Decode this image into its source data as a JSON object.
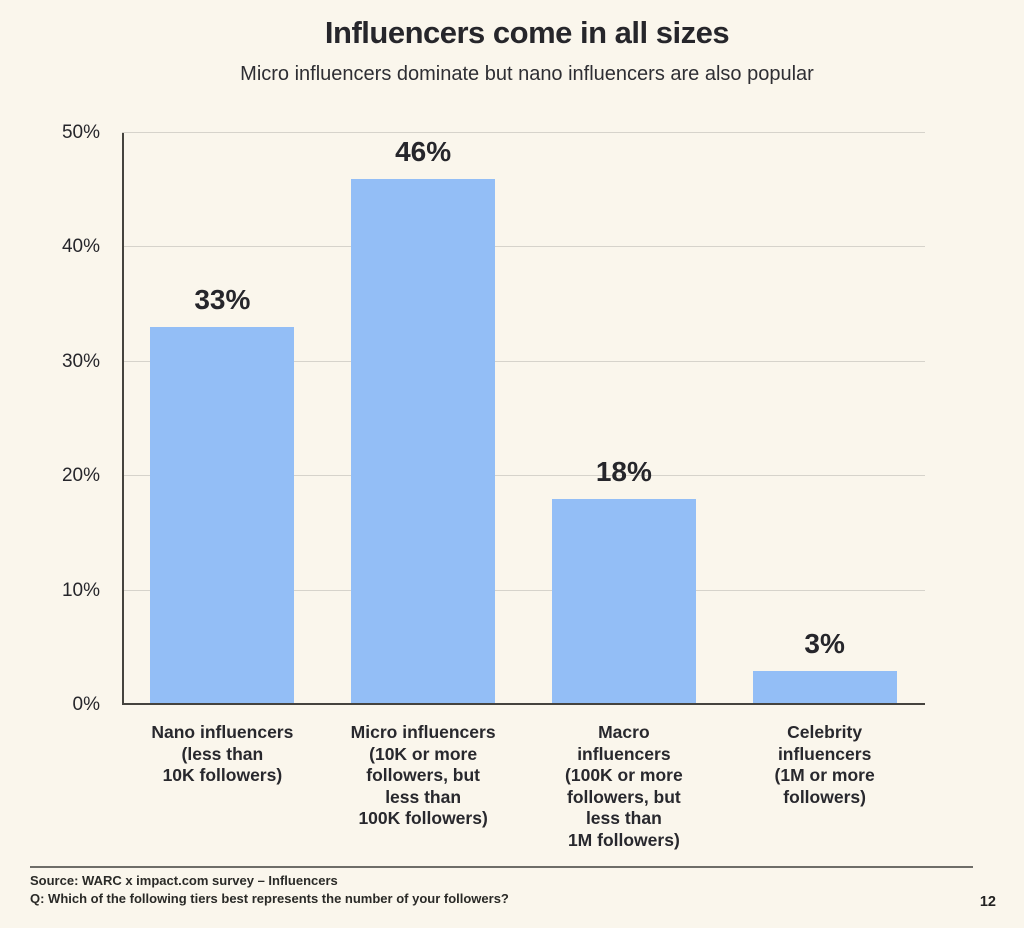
{
  "header": {
    "title": "Influencers come in all sizes",
    "subtitle": "Micro influencers dominate but nano influencers are also popular"
  },
  "chart_data": {
    "type": "bar",
    "title": "Influencers come in all sizes",
    "subtitle": "Micro influencers dominate but nano influencers are also popular",
    "categories": [
      "Nano influencers (less than 10K followers)",
      "Micro influencers (10K or more followers, but less than 100K followers)",
      "Macro influencers (100K or more followers, but less than 1M followers)",
      "Celebrity influencers (1M or more followers)"
    ],
    "category_label_lines": [
      [
        "Nano influencers",
        "(less than",
        "10K followers)"
      ],
      [
        "Micro influencers",
        "(10K or more",
        "followers, but",
        "less than",
        "100K followers)"
      ],
      [
        "Macro",
        "influencers",
        "(100K or more",
        "followers, but",
        "less than",
        "1M followers)"
      ],
      [
        "Celebrity",
        "influencers",
        "(1M or more",
        "followers)"
      ]
    ],
    "values": [
      33,
      46,
      18,
      3
    ],
    "value_labels": [
      "33%",
      "46%",
      "18%",
      "3%"
    ],
    "xlabel": "",
    "ylabel": "",
    "ylim": [
      0,
      50
    ],
    "y_ticks": [
      {
        "value": 0,
        "label": "0%"
      },
      {
        "value": 10,
        "label": "10%"
      },
      {
        "value": 20,
        "label": "20%"
      },
      {
        "value": 30,
        "label": "30%"
      },
      {
        "value": 40,
        "label": "40%"
      },
      {
        "value": 50,
        "label": "50%"
      }
    ],
    "grid": true,
    "legend": "none",
    "bar_color": "#93BEF6"
  },
  "colors": {
    "background": "#FAF6EC",
    "bar": "#93BEF6",
    "gridline": "#D6D3CB",
    "axis": "#45433E",
    "text": "#26262B"
  },
  "footer": {
    "source": "Source: WARC x impact.com survey – Influencers",
    "question": "Q: Which of the following tiers best represents the number of your followers?",
    "page_number": "12"
  }
}
